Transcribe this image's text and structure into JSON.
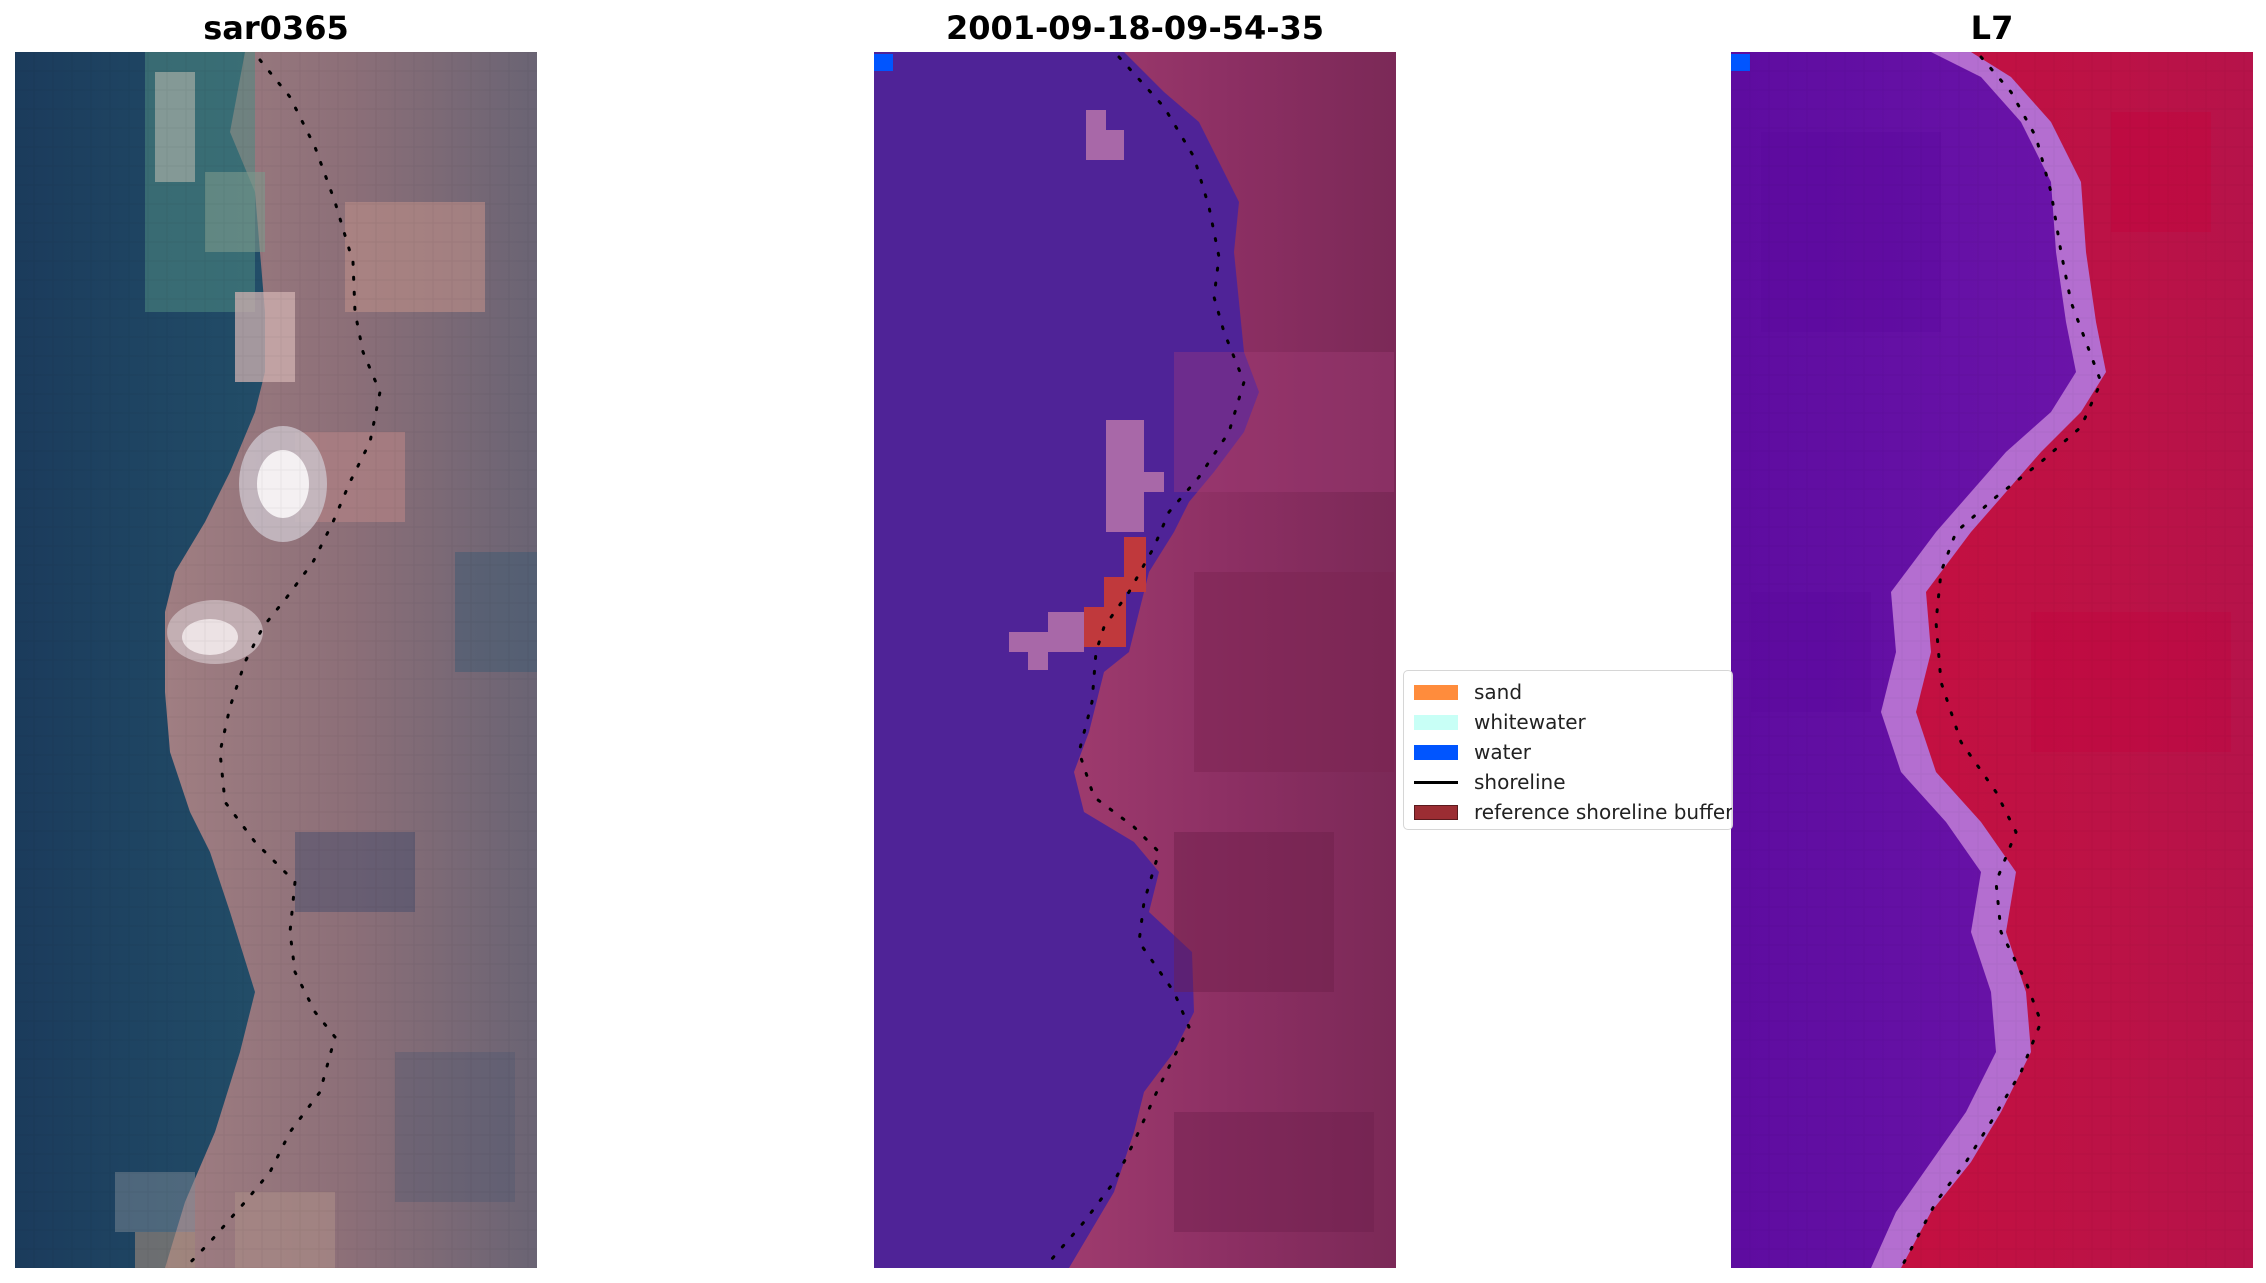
{
  "panels": [
    {
      "title": "sar0365"
    },
    {
      "title": "2001-09-18-09-54-35"
    },
    {
      "title": "L7"
    }
  ],
  "legend": {
    "items": [
      {
        "label": "sand",
        "color": "#ff8c3c",
        "kind": "patch"
      },
      {
        "label": "whitewater",
        "color": "#c8fff6",
        "kind": "patch"
      },
      {
        "label": "water",
        "color": "#0055ff",
        "kind": "patch"
      },
      {
        "label": "shoreline",
        "color": "#000000",
        "kind": "line"
      },
      {
        "label": "reference shoreline buffer",
        "color": "#9b2d33",
        "kind": "patch-outlined"
      }
    ]
  },
  "colors": {
    "rgb_water": "#1f4e6e",
    "rgb_land": "#9a7d83",
    "class_water": "#4f2397",
    "class_land": "#8b2f63",
    "class_whitewater_overlay": "#a868a8",
    "class_sand_overlay": "#c0393c",
    "mndwi_water": "#6a0ca8",
    "mndwi_land": "#c20e46",
    "mndwi_transition": "#b46ed0"
  }
}
